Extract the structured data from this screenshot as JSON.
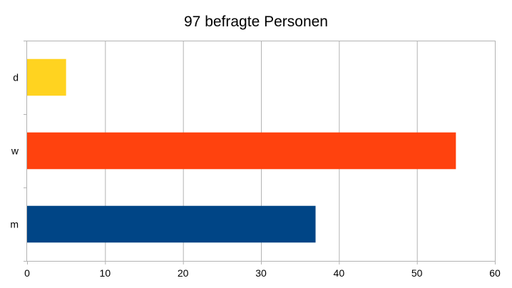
{
  "chart_data": {
    "type": "bar",
    "orientation": "horizontal",
    "title": "97 befragte Personen",
    "categories": [
      "m",
      "w",
      "d"
    ],
    "values": [
      37,
      55,
      5
    ],
    "colors": [
      "#004586",
      "#ff420e",
      "#ffd320"
    ],
    "xlim": [
      0,
      60
    ],
    "xticks": [
      0,
      10,
      20,
      30,
      40,
      50,
      60
    ],
    "grid": true,
    "legend": "none",
    "xlabel": "",
    "ylabel": ""
  }
}
